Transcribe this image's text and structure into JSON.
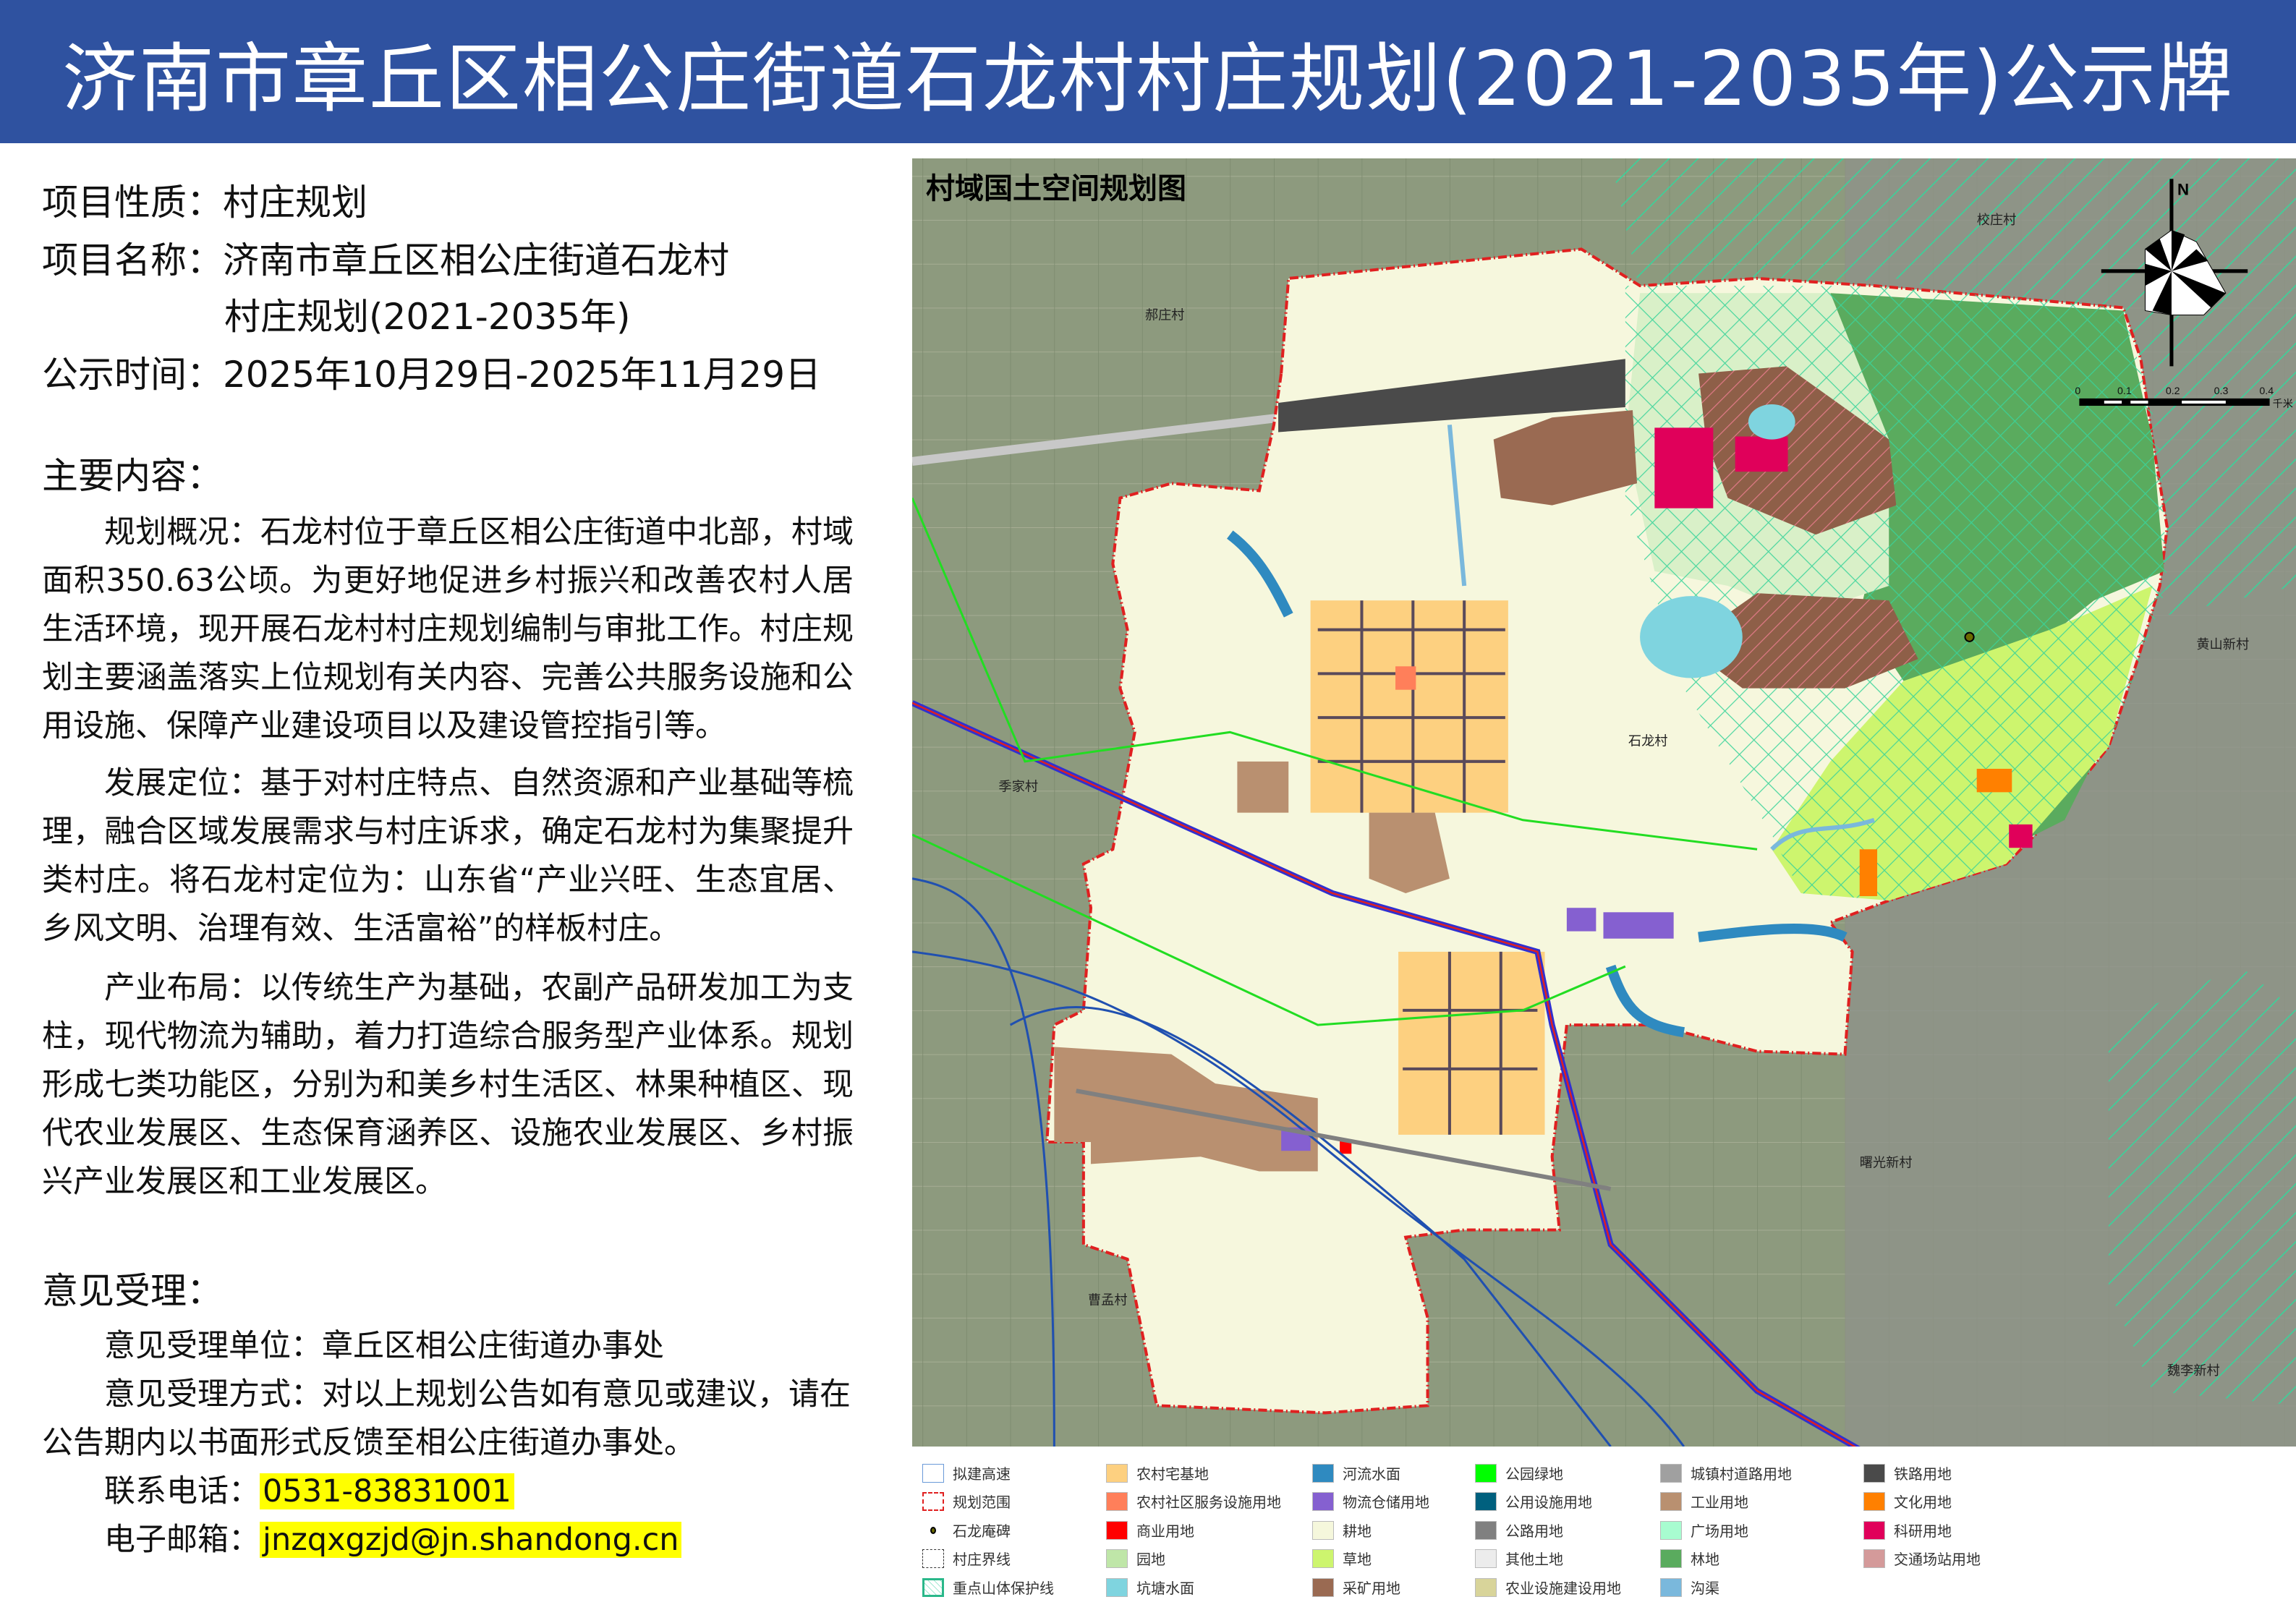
{
  "header": {
    "title": "济南市章丘区相公庄街道石龙村村庄规划(2021-2035年)公示牌"
  },
  "info": {
    "nature_label": "项目性质：",
    "nature": "村庄规划",
    "name_label": "项目名称：",
    "name_line1": "济南市章丘区相公庄街道石龙村",
    "name_line2": "村庄规划(2021-2035年)",
    "time_label": "公示时间：",
    "time": "2025年10月29日-2025年11月29日"
  },
  "content": {
    "heading": "主要内容：",
    "paragraphs": [
      "规划概况：石龙村位于章丘区相公庄街道中北部，村域面积350.63公顷。为更好地促进乡村振兴和改善农村人居生活环境，现开展石龙村村庄规划编制与审批工作。村庄规划主要涵盖落实上位规划有关内容、完善公共服务设施和公用设施、保障产业建设项目以及建设管控指引等。",
      "发展定位：基于对村庄特点、自然资源和产业基础等梳理，融合区域发展需求与村庄诉求，确定石龙村为集聚提升类村庄。将石龙村定位为：山东省“产业兴旺、生态宜居、乡风文明、治理有效、生活富裕”的样板村庄。",
      "产业布局：以传统生产为基础，农副产品研发加工为支柱，现代物流为辅助，着力打造综合服务型产业体系。规划形成七类功能区，分别为和美乡村生活区、林果种植区、现代农业发展区、生态保育涵养区、设施农业发展区、乡村振兴产业发展区和工业发展区。"
    ]
  },
  "opinion": {
    "heading": "意见受理：",
    "unit": "意见受理单位：章丘区相公庄街道办事处",
    "method": "意见受理方式：对以上规划公告如有意见或建议，请在公告期内以书面形式反馈至相公庄街道办事处。",
    "phone_label": "联系电话：",
    "phone": "0531-83831001",
    "email_label": "电子邮箱：",
    "email": "jnzqxgzjd@jn.shandong.cn"
  },
  "map": {
    "title": "村域国土空间规划图",
    "north": "N",
    "scale_ticks": [
      "0",
      "0.1",
      "0.2",
      "0.3",
      "0.4"
    ],
    "scale_unit": "千米",
    "villages": [
      "郝庄村",
      "校庄村",
      "黄山新村",
      "石龙村",
      "季家村",
      "曹孟村",
      "曙光新村",
      "魏李新村"
    ]
  },
  "legend": [
    {
      "label": "拟建高速",
      "color": "#ffffff",
      "kind": "blue-outline"
    },
    {
      "label": "规划范围",
      "color": "#ffffff",
      "kind": "red-dash"
    },
    {
      "label": "石龙庵碑",
      "color": "#6b6b00",
      "kind": "dot"
    },
    {
      "label": "村庄界线",
      "color": "#ffffff",
      "kind": "black-dash"
    },
    {
      "label": "重点山体保护线",
      "color": "#ffffff",
      "kind": "hatch"
    },
    {
      "label": "农村宅基地",
      "color": "#fdd080"
    },
    {
      "label": "农村社区服务设施用地",
      "color": "#ff7f5a"
    },
    {
      "label": "商业用地",
      "color": "#ff0000"
    },
    {
      "label": "园地",
      "color": "#bfe6a8"
    },
    {
      "label": "坑塘水面",
      "color": "#7fd4df"
    },
    {
      "label": "河流水面",
      "color": "#2f8ac0"
    },
    {
      "label": "物流仓储用地",
      "color": "#8560d0"
    },
    {
      "label": "耕地",
      "color": "#f5f7dc"
    },
    {
      "label": "草地",
      "color": "#cdf56e"
    },
    {
      "label": "采矿用地",
      "color": "#9a6a52"
    },
    {
      "label": "公园绿地",
      "color": "#00ff00"
    },
    {
      "label": "公用设施用地",
      "color": "#00607e"
    },
    {
      "label": "公路用地",
      "color": "#808080"
    },
    {
      "label": "其他土地",
      "color": "#ececec"
    },
    {
      "label": "农业设施建设用地",
      "color": "#d8d49a"
    },
    {
      "label": "城镇村道路用地",
      "color": "#a0a0a0"
    },
    {
      "label": "工业用地",
      "color": "#b99070"
    },
    {
      "label": "广场用地",
      "color": "#a8fcd0"
    },
    {
      "label": "林地",
      "color": "#5aab5e"
    },
    {
      "label": "沟渠",
      "color": "#7ab8dc"
    },
    {
      "label": "铁路用地",
      "color": "#4a4a4a"
    },
    {
      "label": "文化用地",
      "color": "#ff8000"
    },
    {
      "label": "科研用地",
      "color": "#e0005a"
    },
    {
      "label": "交通场站用地",
      "color": "#d49a9a"
    }
  ]
}
